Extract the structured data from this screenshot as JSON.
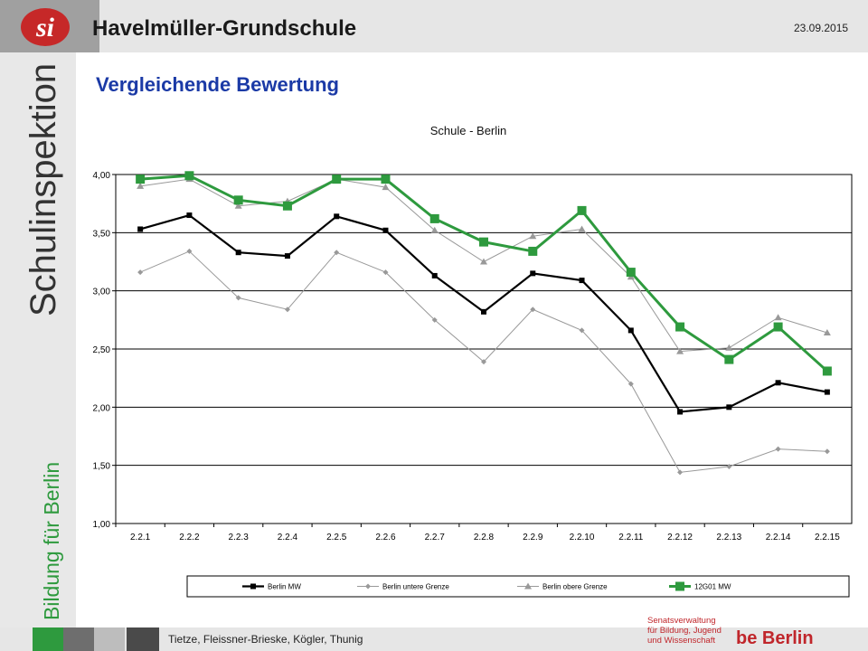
{
  "header": {
    "school_name": "Havelmüller-Grundschule",
    "date": "23.09.2015",
    "logo_text": "si"
  },
  "sidebar": {
    "title": "Schulinspektion",
    "subtitle": "Bildung für Berlin"
  },
  "page_title": "Vergleichende Bewertung",
  "footer": {
    "authors": "Tietze, Fleissner-Brieske, Kögler, Thunig",
    "senat_lines": [
      "Senatsverwaltung",
      "für Bildung, Jugend",
      "und Wissenschaft"
    ],
    "berlin_logo": "be Berlin"
  },
  "colors": {
    "accent_green": "#2e9a3e",
    "title_blue": "#1b3aa6"
  },
  "chart_data": {
    "type": "line",
    "title": "Schule - Berlin",
    "xlabel": "",
    "ylabel": "",
    "ylim": [
      1.0,
      4.0
    ],
    "yticks": [
      "1,00",
      "1,50",
      "2,00",
      "2,50",
      "3,00",
      "3,50",
      "4,00"
    ],
    "grid": true,
    "legend_position": "bottom",
    "categories": [
      "2.2.1",
      "2.2.2",
      "2.2.3",
      "2.2.4",
      "2.2.5",
      "2.2.6",
      "2.2.7",
      "2.2.8",
      "2.2.9",
      "2.2.10",
      "2.2.11",
      "2.2.12",
      "2.2.13",
      "2.2.14",
      "2.2.15"
    ],
    "series": [
      {
        "name": "Berlin MW",
        "color": "#000000",
        "marker": "square",
        "values": [
          3.53,
          3.65,
          3.33,
          3.3,
          3.64,
          3.52,
          3.13,
          2.82,
          3.15,
          3.09,
          2.66,
          1.96,
          2.0,
          2.21,
          2.13
        ]
      },
      {
        "name": "Berlin untere Grenze",
        "color": "#999999",
        "marker": "diamond",
        "values": [
          3.16,
          3.34,
          2.94,
          2.84,
          3.33,
          3.16,
          2.75,
          2.39,
          2.84,
          2.66,
          2.2,
          1.44,
          1.49,
          1.64,
          1.62
        ]
      },
      {
        "name": "Berlin obere Grenze",
        "color": "#999999",
        "marker": "triangle",
        "values": [
          3.9,
          3.96,
          3.73,
          3.77,
          3.96,
          3.89,
          3.52,
          3.25,
          3.47,
          3.53,
          3.12,
          2.48,
          2.51,
          2.77,
          2.64
        ]
      },
      {
        "name": "12G01 MW",
        "color": "#2e9a3e",
        "marker": "square-large",
        "values": [
          3.96,
          3.99,
          3.78,
          3.73,
          3.96,
          3.96,
          3.62,
          3.42,
          3.34,
          3.69,
          3.16,
          2.69,
          2.41,
          2.69,
          2.31
        ]
      }
    ]
  }
}
